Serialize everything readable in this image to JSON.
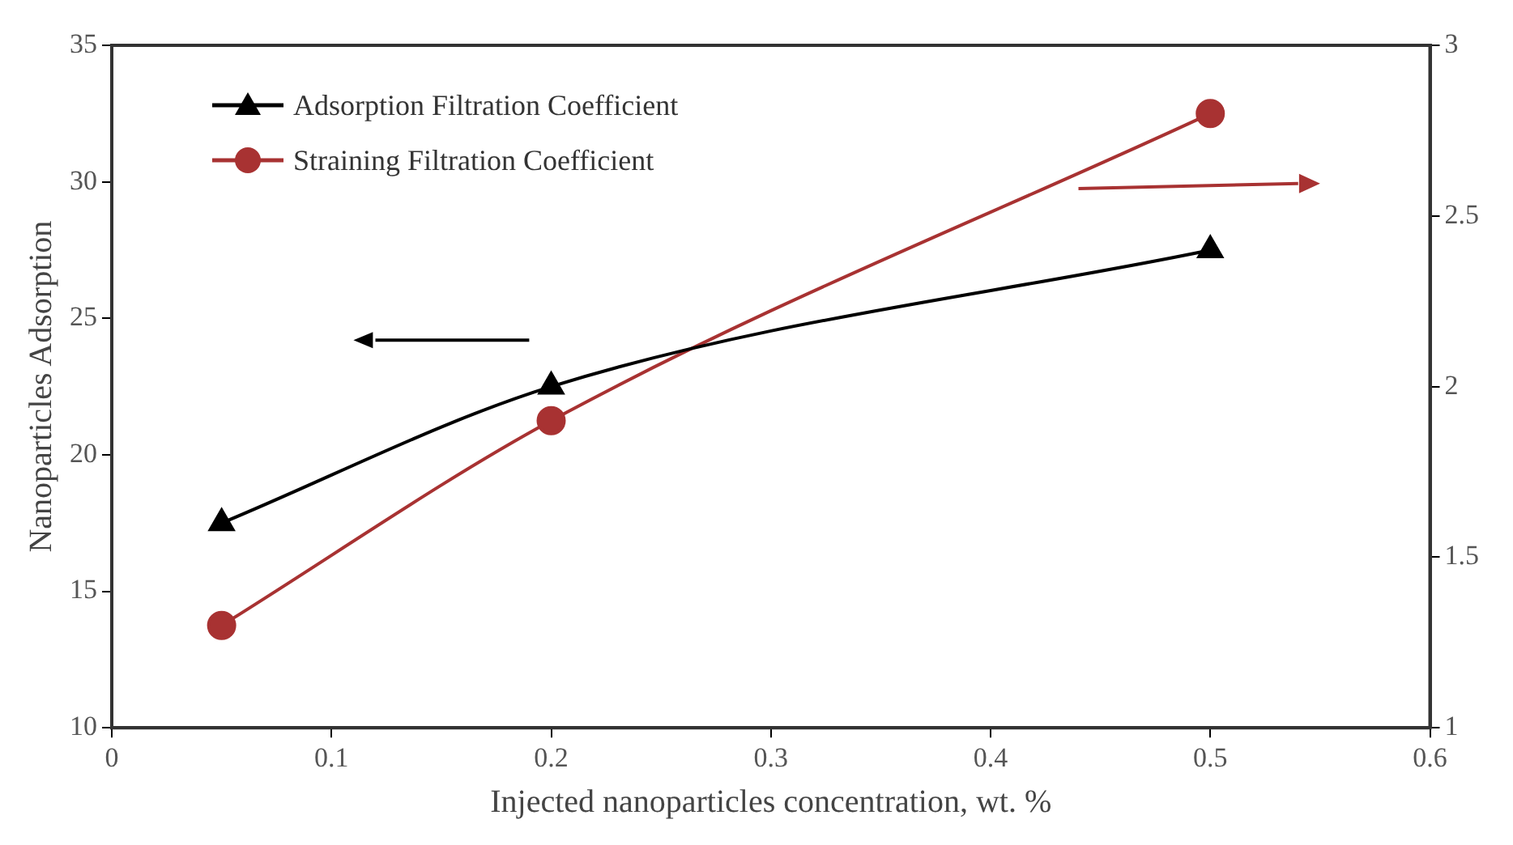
{
  "chart_data": {
    "type": "line",
    "xlabel": "Injected nanoparticles concentration, wt. %",
    "ylabel": "Nanoparticles Adsorption",
    "x": [
      0.05,
      0.2,
      0.5
    ],
    "xlim": [
      0,
      0.6
    ],
    "xticks": [
      0,
      0.1,
      0.2,
      0.3,
      0.4,
      0.5,
      0.6
    ],
    "ylim": [
      10,
      35
    ],
    "yticks": [
      10,
      15,
      20,
      25,
      30,
      35
    ],
    "y2lim": [
      1,
      3
    ],
    "y2ticks": [
      1,
      1.5,
      2,
      2.5,
      3
    ],
    "grid": false,
    "legend": "top left",
    "series": [
      {
        "name": "Adsorption Filtration Coefficient",
        "color": "#000000",
        "values": [
          17.5,
          22.5,
          27.5
        ],
        "marker": "triangle"
      },
      {
        "name": "Straining Filtration Coefficient",
        "color": "#a83232",
        "values": [
          1.3,
          1.9,
          2.8
        ],
        "marker": "circle",
        "axis": "y2"
      }
    ]
  }
}
